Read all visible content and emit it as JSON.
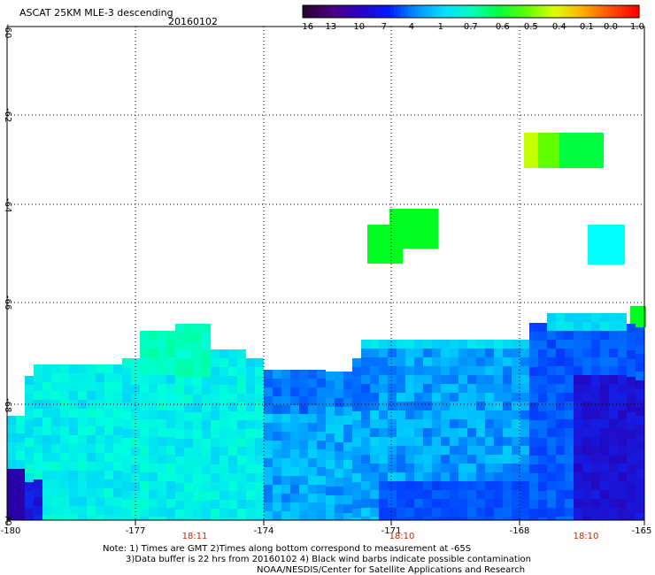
{
  "header": {
    "title": "ASCAT 25KM MLE-3 descending",
    "date": "20160102"
  },
  "colorbar": {
    "labels": [
      "-16",
      "-13",
      "-10",
      "-7",
      "-4",
      "-1",
      "-0.7",
      "-0.6",
      "-0.5",
      "-0.4",
      "-0.1",
      "0.0",
      "1.0"
    ],
    "colors": [
      "#2a0030",
      "#4a0080",
      "#2a00c8",
      "#0018ff",
      "#0090ff",
      "#00e0ff",
      "#00ffc0",
      "#00ff40",
      "#60ff00",
      "#e0ff00",
      "#ffb000",
      "#ff5000",
      "#ff0000"
    ]
  },
  "axes": {
    "y_labels": [
      "-60",
      "-62",
      "-64",
      "-66",
      "-68",
      "-70"
    ],
    "x_labels": [
      "-180",
      "-177",
      "-174",
      "-171",
      "-168",
      "-165"
    ],
    "time_labels": [
      "18:11",
      "18:10",
      "18:10"
    ]
  },
  "notes": {
    "line1": "Note: 1) Times are GMT 2)Times along bottom correspond to measurement at -65S",
    "line2": "3)Data buffer is 22 hrs from 20160102 4) Black wind barbs indicate possible contamination",
    "line3": "NOAA/NESDIS/Center for Satellite Applications and Research"
  }
}
